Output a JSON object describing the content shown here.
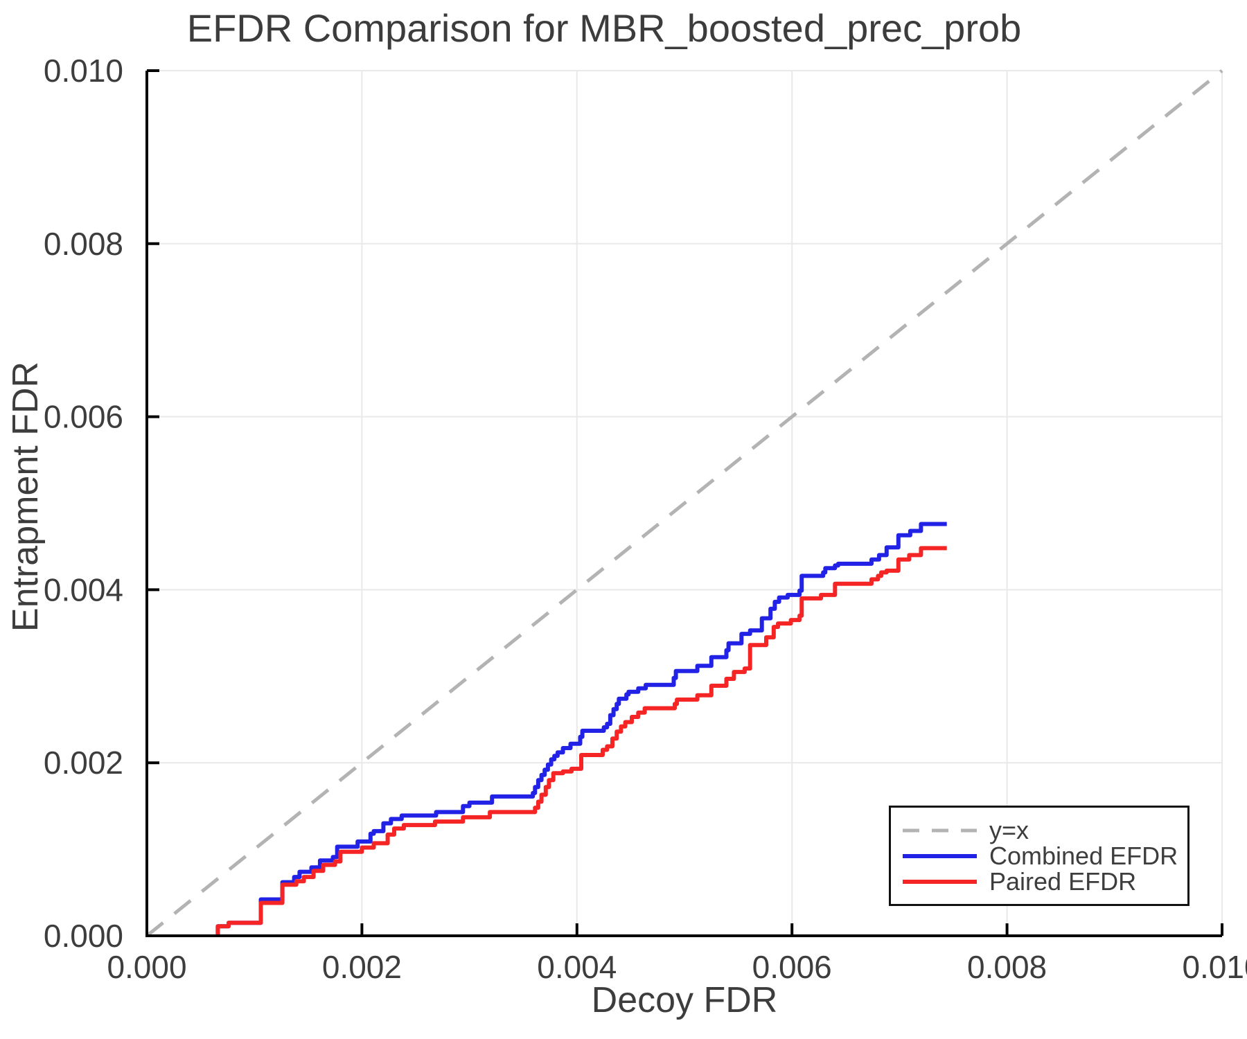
{
  "colors": {
    "background": "#ffffff",
    "text": "#3d3d3d",
    "title_text": "#3c3c3c",
    "grid": "#e9e9e9",
    "spine": "#000000",
    "identity_line": "#b3b3b3",
    "combined_line": "#2222e6",
    "paired_line": "#f52525"
  },
  "chart_data": {
    "type": "line",
    "title": "EFDR Comparison for MBR_boosted_prec_prob",
    "xlabel": "Decoy FDR",
    "ylabel": "Entrapment FDR",
    "xlim": [
      0,
      0.01
    ],
    "ylim": [
      0,
      0.01
    ],
    "grid": true,
    "legend_position": "lower right",
    "xticks": [
      0,
      0.002,
      0.004,
      0.006,
      0.008,
      0.01
    ],
    "xtick_labels": [
      "0.000",
      "0.002",
      "0.004",
      "0.006",
      "0.008",
      "0.010"
    ],
    "yticks": [
      0,
      0.002,
      0.004,
      0.006,
      0.008,
      0.01
    ],
    "ytick_labels": [
      "0.000",
      "0.002",
      "0.004",
      "0.006",
      "0.008",
      "0.010"
    ],
    "series": [
      {
        "name": "y=x",
        "style": "dashed",
        "step": false,
        "color": "#b3b3b3",
        "width": 5,
        "points": [
          [
            0,
            0
          ],
          [
            0.01,
            0.01
          ]
        ]
      },
      {
        "name": "Combined EFDR",
        "style": "solid",
        "step": true,
        "color": "#2222e6",
        "width": 6,
        "points": [
          [
            0.00066,
            0
          ],
          [
            0.00066,
            0.00011
          ],
          [
            0.00076,
            0.00015
          ],
          [
            0.00106,
            0.00042
          ],
          [
            0.00126,
            0.00062
          ],
          [
            0.00137,
            0.00068
          ],
          [
            0.00142,
            0.00074
          ],
          [
            0.00153,
            0.00079
          ],
          [
            0.00161,
            0.00087
          ],
          [
            0.00173,
            0.00091
          ],
          [
            0.00177,
            0.00103
          ],
          [
            0.00196,
            0.00109
          ],
          [
            0.00208,
            0.00118
          ],
          [
            0.00211,
            0.00121
          ],
          [
            0.0022,
            0.0013
          ],
          [
            0.00227,
            0.00135
          ],
          [
            0.00237,
            0.00139
          ],
          [
            0.00269,
            0.00143
          ],
          [
            0.00294,
            0.0015
          ],
          [
            0.003,
            0.00154
          ],
          [
            0.00321,
            0.00161
          ],
          [
            0.00359,
            0.00165
          ],
          [
            0.00361,
            0.00172
          ],
          [
            0.00364,
            0.0018
          ],
          [
            0.00367,
            0.00186
          ],
          [
            0.0037,
            0.00192
          ],
          [
            0.00373,
            0.00198
          ],
          [
            0.00376,
            0.00204
          ],
          [
            0.00379,
            0.00208
          ],
          [
            0.00382,
            0.00212
          ],
          [
            0.00387,
            0.00217
          ],
          [
            0.00394,
            0.00222
          ],
          [
            0.00403,
            0.0023
          ],
          [
            0.00405,
            0.00237
          ],
          [
            0.00425,
            0.00241
          ],
          [
            0.00428,
            0.00245
          ],
          [
            0.00431,
            0.00255
          ],
          [
            0.00434,
            0.00262
          ],
          [
            0.00437,
            0.00268
          ],
          [
            0.00439,
            0.00274
          ],
          [
            0.00446,
            0.00279
          ],
          [
            0.00448,
            0.00282
          ],
          [
            0.00457,
            0.00286
          ],
          [
            0.00464,
            0.0029
          ],
          [
            0.0049,
            0.00298
          ],
          [
            0.00492,
            0.00306
          ],
          [
            0.00512,
            0.00312
          ],
          [
            0.00525,
            0.00322
          ],
          [
            0.00539,
            0.0033
          ],
          [
            0.00541,
            0.00338
          ],
          [
            0.00553,
            0.00349
          ],
          [
            0.00561,
            0.00353
          ],
          [
            0.00572,
            0.00367
          ],
          [
            0.0058,
            0.00378
          ],
          [
            0.00584,
            0.00386
          ],
          [
            0.00588,
            0.00391
          ],
          [
            0.00596,
            0.00394
          ],
          [
            0.00607,
            0.00399
          ],
          [
            0.00609,
            0.00416
          ],
          [
            0.00629,
            0.0042
          ],
          [
            0.00631,
            0.00425
          ],
          [
            0.0064,
            0.00428
          ],
          [
            0.00643,
            0.0043
          ],
          [
            0.00674,
            0.00435
          ],
          [
            0.00681,
            0.0044
          ],
          [
            0.00688,
            0.00449
          ],
          [
            0.00699,
            0.00463
          ],
          [
            0.0071,
            0.00468
          ],
          [
            0.0072,
            0.00476
          ],
          [
            0.00744,
            0.00476
          ]
        ]
      },
      {
        "name": "Paired EFDR",
        "style": "solid",
        "step": true,
        "color": "#f52525",
        "width": 6,
        "points": [
          [
            0.00066,
            0
          ],
          [
            0.00066,
            0.00011
          ],
          [
            0.00076,
            0.00015
          ],
          [
            0.00106,
            0.00038
          ],
          [
            0.00126,
            0.00059
          ],
          [
            0.00139,
            0.00063
          ],
          [
            0.00146,
            0.00068
          ],
          [
            0.00155,
            0.00075
          ],
          [
            0.00164,
            0.00082
          ],
          [
            0.00175,
            0.00086
          ],
          [
            0.0018,
            0.00097
          ],
          [
            0.002,
            0.00102
          ],
          [
            0.00211,
            0.00107
          ],
          [
            0.00224,
            0.00117
          ],
          [
            0.0023,
            0.00124
          ],
          [
            0.00239,
            0.00128
          ],
          [
            0.00268,
            0.00132
          ],
          [
            0.00294,
            0.00137
          ],
          [
            0.00319,
            0.00143
          ],
          [
            0.00361,
            0.00148
          ],
          [
            0.00364,
            0.00155
          ],
          [
            0.00367,
            0.00163
          ],
          [
            0.00371,
            0.00172
          ],
          [
            0.00374,
            0.0018
          ],
          [
            0.00378,
            0.00188
          ],
          [
            0.00387,
            0.0019
          ],
          [
            0.00395,
            0.00193
          ],
          [
            0.00404,
            0.00209
          ],
          [
            0.00424,
            0.00215
          ],
          [
            0.00428,
            0.00219
          ],
          [
            0.00433,
            0.00228
          ],
          [
            0.00437,
            0.00236
          ],
          [
            0.00441,
            0.00242
          ],
          [
            0.00445,
            0.00247
          ],
          [
            0.00451,
            0.00253
          ],
          [
            0.00457,
            0.00258
          ],
          [
            0.00463,
            0.00263
          ],
          [
            0.00491,
            0.00268
          ],
          [
            0.00493,
            0.00273
          ],
          [
            0.00512,
            0.00278
          ],
          [
            0.00525,
            0.00289
          ],
          [
            0.00539,
            0.00297
          ],
          [
            0.00546,
            0.00305
          ],
          [
            0.00556,
            0.00309
          ],
          [
            0.00561,
            0.00336
          ],
          [
            0.00576,
            0.00345
          ],
          [
            0.00583,
            0.00357
          ],
          [
            0.00587,
            0.00361
          ],
          [
            0.00599,
            0.00365
          ],
          [
            0.00607,
            0.0037
          ],
          [
            0.00609,
            0.0039
          ],
          [
            0.00627,
            0.00394
          ],
          [
            0.0064,
            0.00407
          ],
          [
            0.00674,
            0.00412
          ],
          [
            0.0068,
            0.00416
          ],
          [
            0.00683,
            0.0042
          ],
          [
            0.00688,
            0.00422
          ],
          [
            0.00699,
            0.00435
          ],
          [
            0.00709,
            0.0044
          ],
          [
            0.0072,
            0.00448
          ],
          [
            0.00744,
            0.00448
          ]
        ]
      }
    ]
  },
  "legend": {
    "items": [
      {
        "label": "y=x"
      },
      {
        "label": "Combined EFDR"
      },
      {
        "label": "Paired EFDR"
      }
    ]
  }
}
